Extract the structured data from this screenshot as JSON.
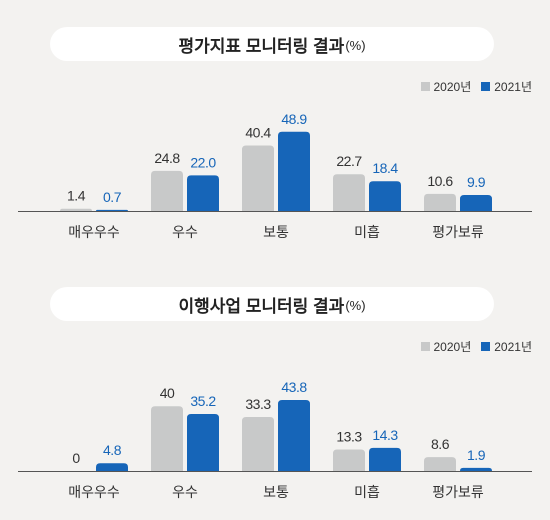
{
  "colors": {
    "series_2020": "#c8c9c9",
    "series_2021": "#1665b8",
    "value_2021": "#1665b8",
    "value_2020": "#333333",
    "axis": "#555555"
  },
  "chart_data": [
    {
      "type": "bar",
      "title": "평가지표 모니터링 결과",
      "title_unit": "(%)",
      "categories": [
        "매우우수",
        "우수",
        "보통",
        "미흡",
        "평가보류"
      ],
      "series": [
        {
          "name": "2020년",
          "values": [
            1.4,
            24.8,
            40.4,
            22.7,
            10.6
          ],
          "labels": [
            "1.4",
            "24.8",
            "40.4",
            "22.7",
            "10.6"
          ]
        },
        {
          "name": "2021년",
          "values": [
            0.7,
            22.0,
            48.9,
            18.4,
            9.9
          ],
          "labels": [
            "0.7",
            "22.0",
            "48.9",
            "18.4",
            "9.9"
          ]
        }
      ],
      "ylim": [
        0,
        55
      ],
      "legend_position": "top-right",
      "grid": false
    },
    {
      "type": "bar",
      "title": "이행사업 모니터링 결과",
      "title_unit": "(%)",
      "categories": [
        "매우우수",
        "우수",
        "보통",
        "미흡",
        "평가보류"
      ],
      "series": [
        {
          "name": "2020년",
          "values": [
            0,
            40,
            33.3,
            13.3,
            8.6
          ],
          "labels": [
            "0",
            "40",
            "33.3",
            "13.3",
            "8.6"
          ]
        },
        {
          "name": "2021년",
          "values": [
            4.8,
            35.2,
            43.8,
            14.3,
            1.9
          ],
          "labels": [
            "4.8",
            "35.2",
            "43.8",
            "14.3",
            "1.9"
          ]
        }
      ],
      "ylim": [
        0,
        48
      ],
      "legend_position": "top-right",
      "grid": false
    }
  ]
}
